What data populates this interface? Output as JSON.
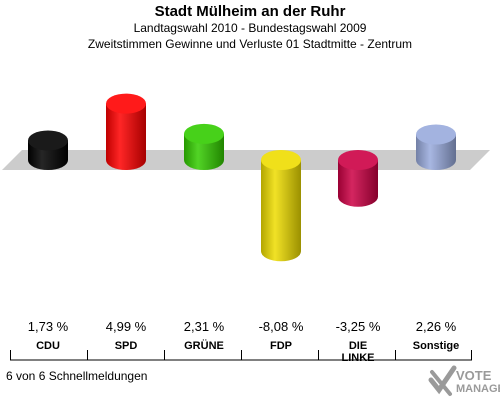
{
  "header": {
    "title": "Stadt Mülheim an der Ruhr",
    "subtitle1": "Landtagswahl 2010 - Bundestagswahl 2009",
    "subtitle2": "Zweitstimmen Gewinne und Verluste 01 Stadtmitte - Zentrum"
  },
  "chart_data": {
    "type": "bar",
    "categories": [
      "CDU",
      "SPD",
      "GRÜNE",
      "FDP",
      "DIE LINKE",
      "Sonstige"
    ],
    "category_lines": [
      [
        "CDU"
      ],
      [
        "SPD"
      ],
      [
        "GRÜNE"
      ],
      [
        "FDP"
      ],
      [
        "DIE",
        "LINKE"
      ],
      [
        "Sonstige"
      ]
    ],
    "values": [
      1.73,
      4.99,
      2.31,
      -8.08,
      -3.25,
      2.26
    ],
    "value_labels": [
      "1,73 %",
      "4,99 %",
      "2,31 %",
      "-8,08 %",
      "-3,25 %",
      "2,26 %"
    ],
    "colors": [
      "#000000",
      "#ff0000",
      "#33cc00",
      "#eedd00",
      "#cc0044",
      "#99aadd"
    ],
    "baseline_color": "#cccccc",
    "title": "Stadt Mülheim an der Ruhr",
    "xlabel": "",
    "ylabel": ""
  },
  "footer": {
    "status": "6 von 6 Schnellmeldungen"
  },
  "logo": {
    "line1": "VOTE",
    "line2": "MANAGER"
  }
}
